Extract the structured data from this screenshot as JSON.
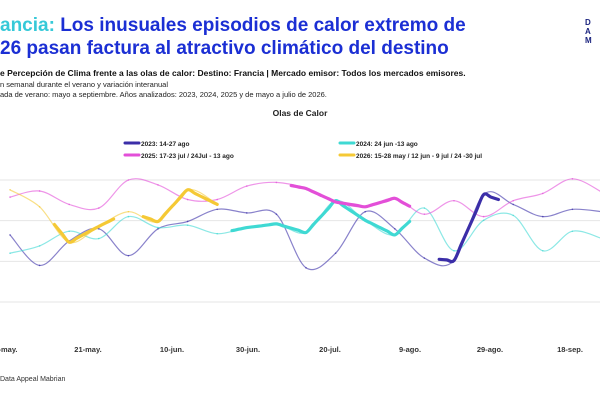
{
  "header": {
    "title_line1_accent": "ancia:",
    "title_line1_rest": "Los inusuales episodios de calor extremo de",
    "title_line2": "26 pasan factura al atractivo climático del destino",
    "subtitle": "e Percepción de Clima frente a las olas de calor: Destino: Francia | Mercado emisor: Todos los mercados emisores.",
    "note1": "n semanal durante el verano y variación interanual",
    "note2": "ada de verano: mayo a septiembre. Años analizados: 2023, 2024, 2025 y de mayo a julio de 2026.",
    "logo_lines": [
      "D",
      "A",
      "M"
    ]
  },
  "footer": {
    "source": "Data Appeal Mabrian"
  },
  "colors": {
    "2023": "#3b2ea8",
    "2024": "#3fd9d3",
    "2025": "#e34fd8",
    "2026": "#f5c935",
    "grid": "#e6e6e6"
  },
  "chart_data": {
    "type": "line",
    "title": "Olas de Calor",
    "x_tick_labels": [
      "-may.",
      "21-may.",
      "10-jun.",
      "30-jun.",
      "20-jul.",
      "9-ago.",
      "29-ago.",
      "18-sep."
    ],
    "legend": [
      {
        "key": "2023",
        "label": "2023: 14-27 ago"
      },
      {
        "key": "2024",
        "label": "2024: 24 jun -13 ago"
      },
      {
        "key": "2025",
        "label": "2025: 17-23 jul / 24Jul - 13 ago"
      },
      {
        "key": "2026",
        "label": "2026: 15-28 may / 12 jun - 9 jul / 24 -30 jul"
      }
    ],
    "y_range": [
      0,
      100
    ],
    "week_count": 21,
    "series": [
      {
        "key": "2023",
        "values": [
          55,
          30,
          50,
          60,
          38,
          60,
          66,
          76,
          73,
          72,
          28,
          40,
          74,
          60,
          36,
          34,
          88,
          80,
          70,
          76,
          74
        ],
        "highlight_weeks": [
          [
            14.5,
            16.5
          ]
        ]
      },
      {
        "key": "2024",
        "values": [
          40,
          46,
          58,
          52,
          70,
          61,
          63,
          56,
          61,
          64,
          57,
          83,
          67,
          55,
          77,
          42,
          67,
          71,
          42,
          58,
          52
        ],
        "highlight_weeks": [
          [
            7.5,
            13.5
          ]
        ]
      },
      {
        "key": "2025",
        "values": [
          86,
          91,
          80,
          77,
          100,
          96,
          84,
          84,
          95,
          98,
          93,
          82,
          78,
          85,
          72,
          83,
          70,
          83,
          89,
          101,
          90
        ],
        "highlight_weeks": [
          [
            9.5,
            10.5
          ],
          [
            10.5,
            13.5
          ]
        ]
      },
      {
        "key": "2026",
        "values": [
          92,
          78,
          49,
          62,
          74,
          66,
          92,
          80
        ],
        "highlight_weeks": [
          [
            1.5,
            3.5
          ],
          [
            4.5,
            7.5
          ],
          [
            10.5,
            11.5
          ]
        ]
      }
    ]
  }
}
